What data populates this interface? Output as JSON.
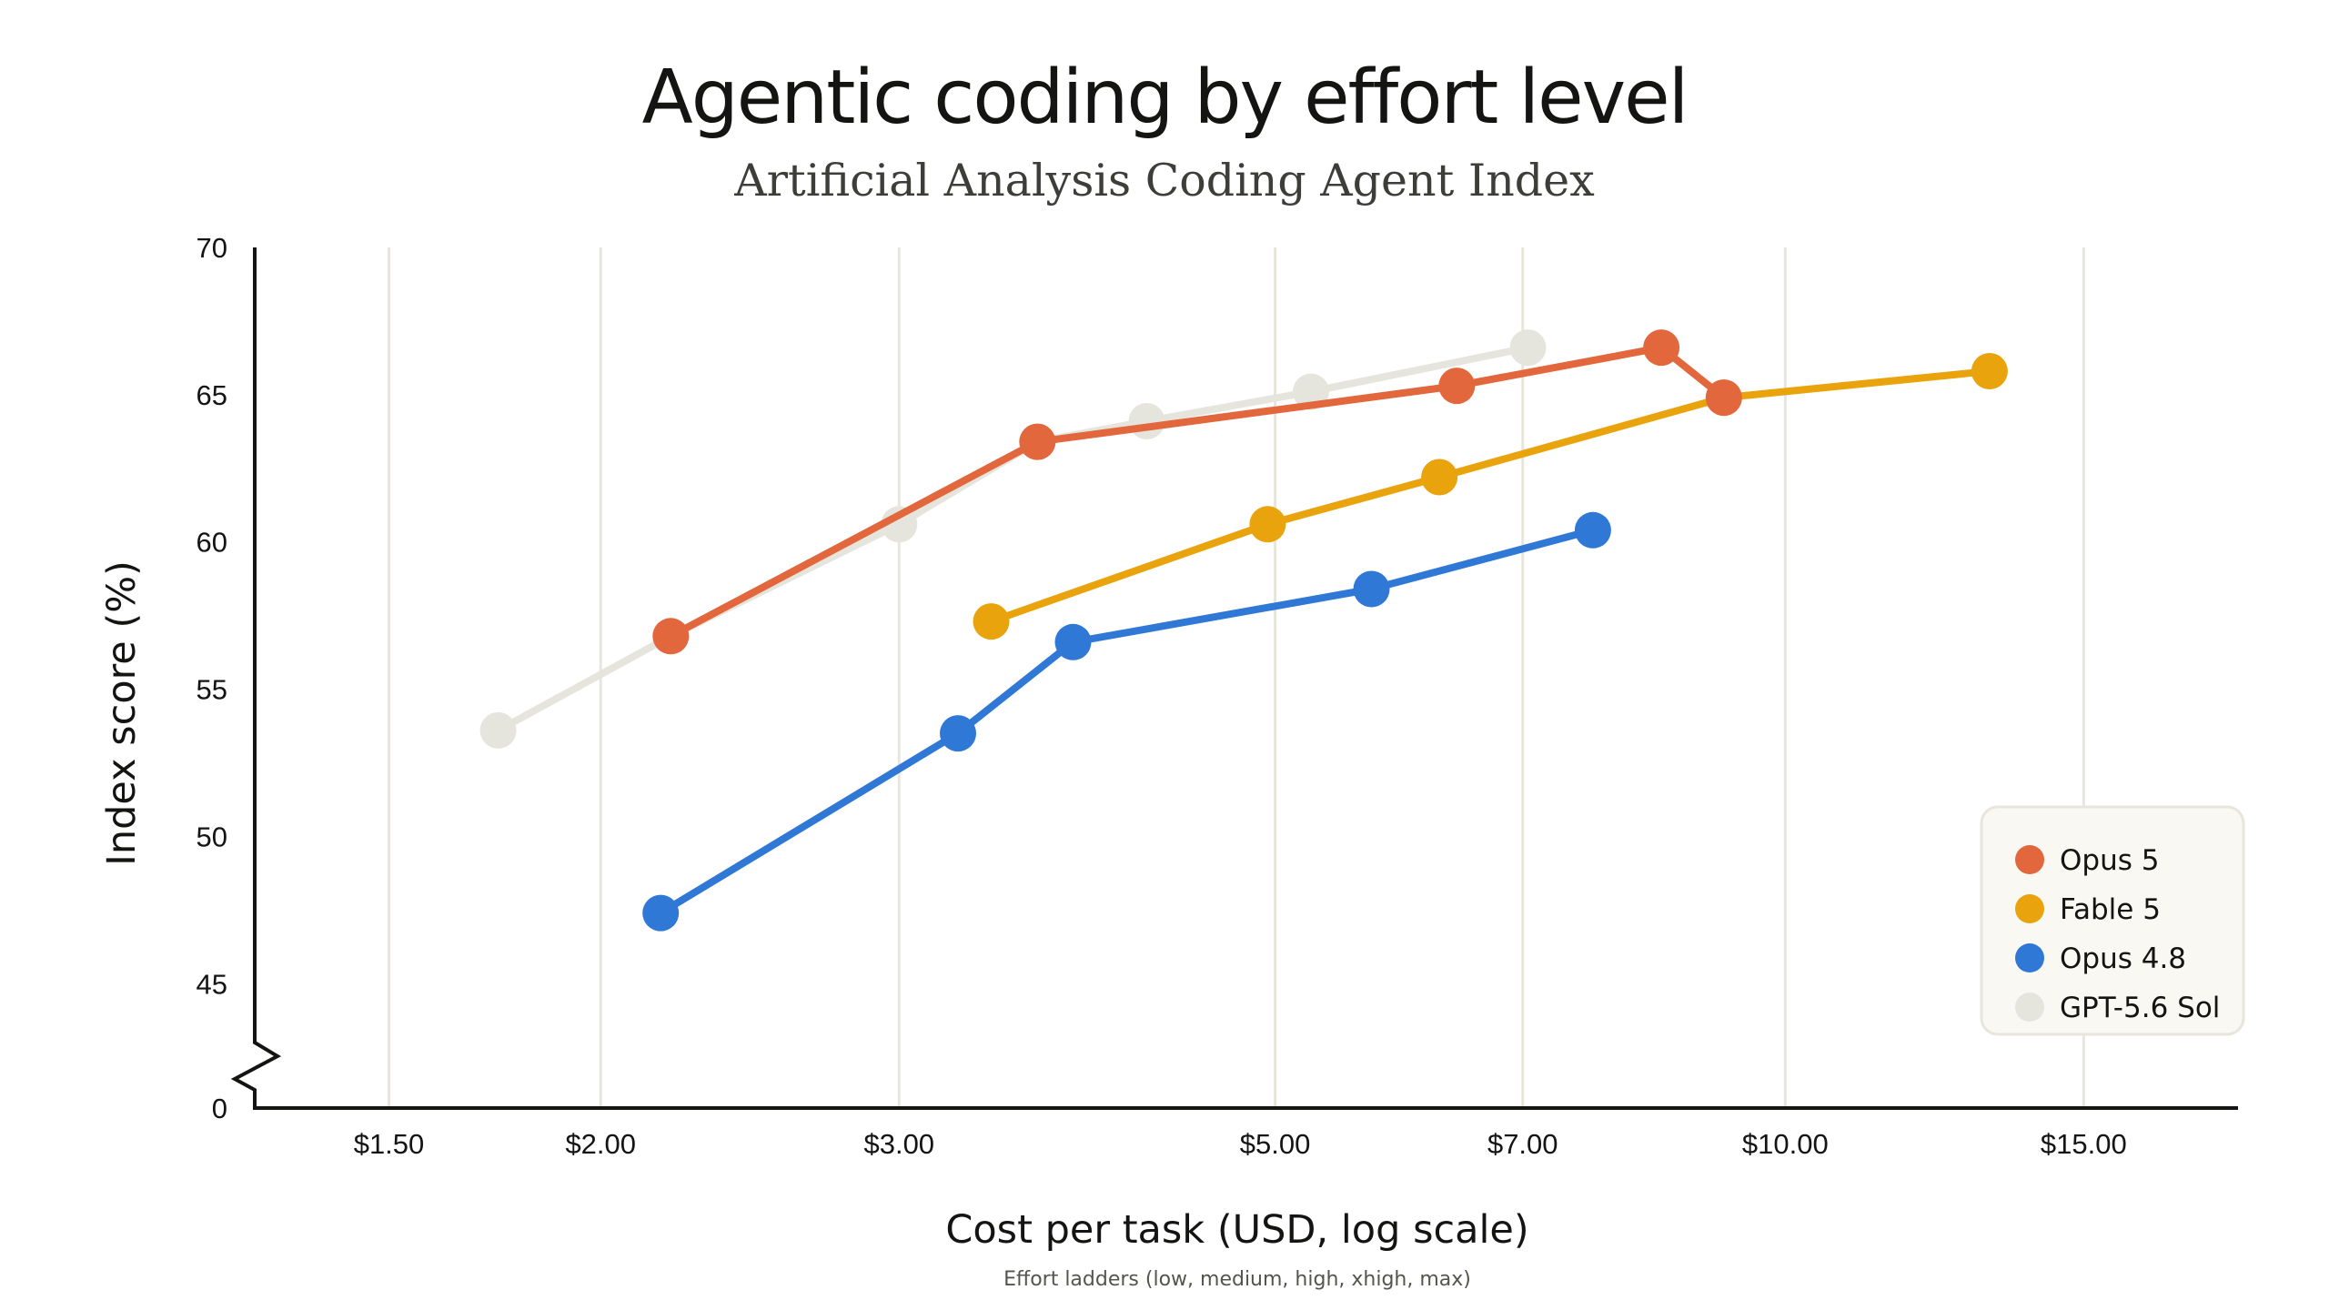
{
  "chart_data": {
    "type": "line",
    "title": "Agentic coding by effort level",
    "subtitle": "Artificial Analysis Coding Agent Index",
    "xlabel": "Cost per task (USD, log scale)",
    "ylabel": "Index score (%)",
    "x_scale": "log",
    "xlim": [
      1.25,
      18.5
    ],
    "ylim": [
      43,
      70
    ],
    "y_axis_break": true,
    "y_zero_label": "0",
    "x_ticks": [
      {
        "value": 1.5,
        "label": "$1.50"
      },
      {
        "value": 2.0,
        "label": "$2.00"
      },
      {
        "value": 3.0,
        "label": "$3.00"
      },
      {
        "value": 5.0,
        "label": "$5.00"
      },
      {
        "value": 7.0,
        "label": "$7.00"
      },
      {
        "value": 10.0,
        "label": "$10.00"
      },
      {
        "value": 15.0,
        "label": "$15.00"
      }
    ],
    "y_ticks": [
      {
        "value": 45,
        "label": "45"
      },
      {
        "value": 50,
        "label": "50"
      },
      {
        "value": 55,
        "label": "55"
      },
      {
        "value": 60,
        "label": "60"
      },
      {
        "value": 65,
        "label": "65"
      },
      {
        "value": 70,
        "label": "70"
      }
    ],
    "grid": "vertical",
    "legend_position": "bottom-right",
    "note": "Effort ladders (low, medium, high, xhigh, max)",
    "series": [
      {
        "name": "GPT-5.6 Sol",
        "color": "#e6e5dd",
        "points": [
          [
            1.74,
            53.6
          ],
          [
            2.2,
            56.8
          ],
          [
            3.0,
            60.6
          ],
          [
            3.62,
            63.4
          ],
          [
            4.2,
            64.1
          ],
          [
            5.25,
            65.1
          ],
          [
            7.05,
            66.6
          ]
        ]
      },
      {
        "name": "Opus 4.8",
        "color": "#2f78d6",
        "points": [
          [
            2.17,
            47.4
          ],
          [
            3.25,
            53.5
          ],
          [
            3.8,
            56.6
          ],
          [
            5.7,
            58.4
          ],
          [
            7.7,
            60.4
          ]
        ]
      },
      {
        "name": "Fable 5",
        "color": "#e9a30c",
        "points": [
          [
            3.4,
            57.3
          ],
          [
            4.95,
            60.6
          ],
          [
            6.25,
            62.2
          ],
          [
            9.2,
            64.9
          ],
          [
            13.2,
            65.8
          ]
        ]
      },
      {
        "name": "Opus 5",
        "color": "#e2673c",
        "points": [
          [
            2.2,
            56.8
          ],
          [
            3.62,
            63.4
          ],
          [
            6.4,
            65.3
          ],
          [
            8.45,
            66.6
          ],
          [
            9.2,
            64.9
          ]
        ]
      }
    ],
    "legend": [
      "Opus 5",
      "Fable 5",
      "Opus 4.8",
      "GPT-5.6 Sol"
    ]
  }
}
